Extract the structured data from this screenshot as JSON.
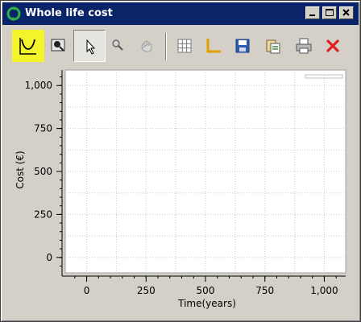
{
  "window": {
    "title": "Whole life cost",
    "title_bar_color": "#0a246a",
    "frame_color": "#d4d0c8",
    "caption_buttons": [
      "minimize-icon",
      "maximize-icon",
      "close-icon"
    ]
  },
  "toolbar": {
    "buttons": [
      {
        "icon": "curve-icon",
        "state": "highlighted",
        "highlight_color": "#f4f42a"
      },
      {
        "icon": "magnifier-icon",
        "state": "normal"
      },
      {
        "icon": "pointer-icon",
        "state": "pressed"
      },
      {
        "icon": "zoom-icon",
        "state": "disabled"
      },
      {
        "icon": "pan-icon",
        "state": "disabled"
      },
      {
        "icon": "grid-icon",
        "state": "normal"
      },
      {
        "icon": "axes-icon",
        "state": "normal"
      },
      {
        "icon": "save-icon",
        "state": "normal"
      },
      {
        "icon": "copy-icon",
        "state": "normal"
      },
      {
        "icon": "print-icon",
        "state": "normal"
      },
      {
        "icon": "close-plot-icon",
        "state": "normal"
      }
    ]
  },
  "chart_data": {
    "type": "line",
    "title": "",
    "xlabel": "Time(years)",
    "ylabel": "Cost (€)",
    "xlim": [
      -90,
      1090
    ],
    "ylim": [
      -90,
      1090
    ],
    "x_ticks": [
      0,
      250,
      500,
      750,
      1000
    ],
    "x_tick_labels": [
      "0",
      "250",
      "500",
      "750",
      "1,000"
    ],
    "y_ticks": [
      0,
      250,
      500,
      750,
      1000
    ],
    "y_tick_labels": [
      "0",
      "250",
      "500",
      "750",
      "1,000"
    ],
    "grid": true,
    "legend": "top-right",
    "series": []
  }
}
